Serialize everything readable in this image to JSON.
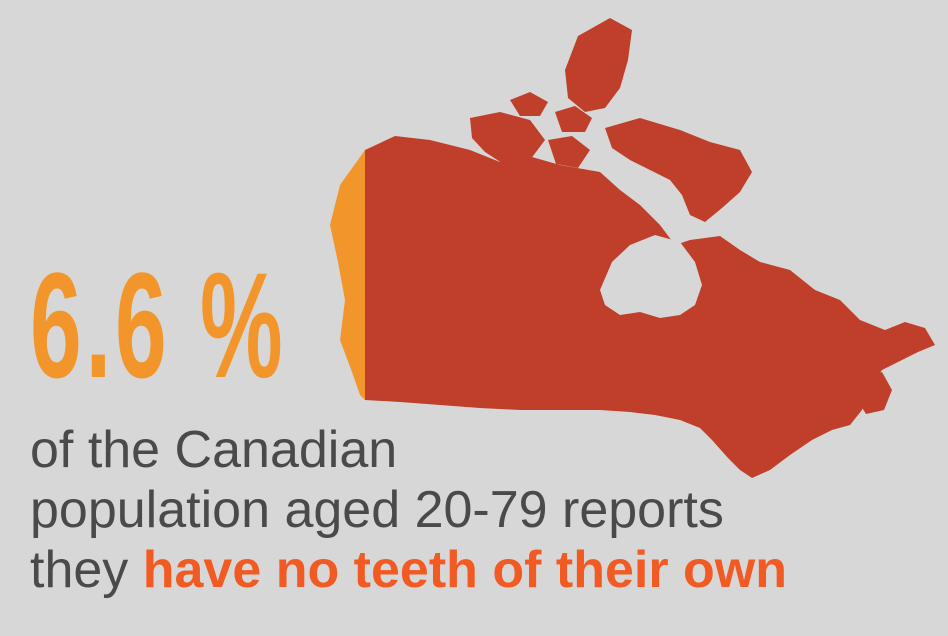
{
  "stat": {
    "value": "6.6 %"
  },
  "caption": {
    "line1": "of the Canadian",
    "line2": "population aged 20-79 reports",
    "line3_prefix": "they ",
    "line3_highlight": "have no teeth of their own"
  },
  "colors": {
    "background": "#d7d7d7",
    "map_main": "#bf3f2a",
    "map_highlight_slice": "#f2962b",
    "stat": "#f2962b",
    "caption_text": "#4a4a4a",
    "caption_highlight": "#f15a22"
  }
}
